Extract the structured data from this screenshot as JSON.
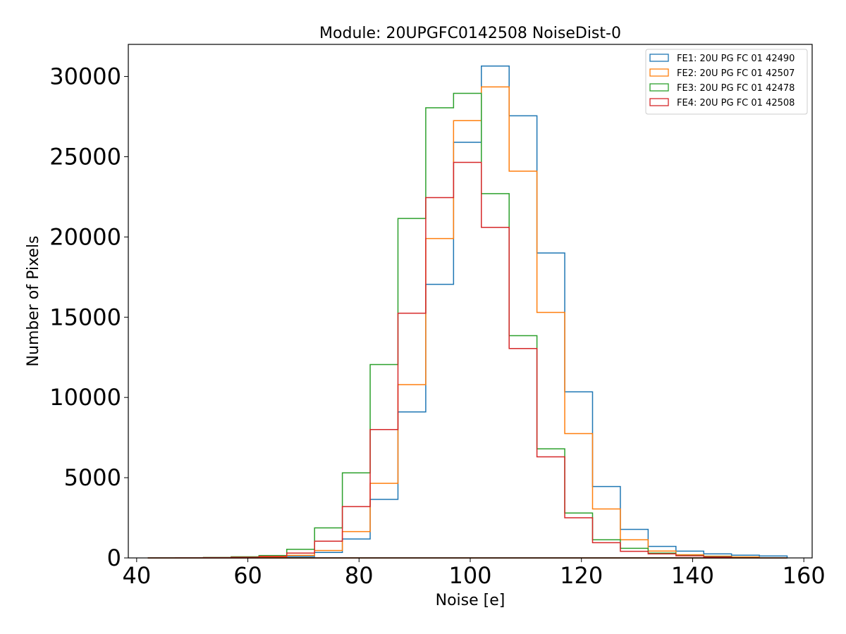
{
  "chart_data": {
    "type": "step-histogram",
    "title": "Module: 20UPGFC0142508 NoiseDist-0",
    "xlabel": "Noise [e]",
    "ylabel": "Number of Pixels",
    "xlim": [
      38.5,
      161.5
    ],
    "ylim": [
      0,
      32000
    ],
    "xticks": [
      40,
      60,
      80,
      100,
      120,
      140,
      160
    ],
    "yticks": [
      0,
      5000,
      10000,
      15000,
      20000,
      25000,
      30000
    ],
    "bin_edges": [
      42,
      47,
      52,
      57,
      62,
      67,
      72,
      77,
      82,
      87,
      92,
      97,
      102,
      107,
      112,
      117,
      122,
      127,
      132,
      137,
      142,
      147,
      152,
      157
    ],
    "legend_position": "top-right",
    "grid": false,
    "series": [
      {
        "name": "FE1: 20U PG FC 01 42490",
        "color": "#1f77b4",
        "values": [
          0,
          0,
          5,
          10,
          30,
          90,
          340,
          1180,
          3650,
          9100,
          17050,
          25900,
          30650,
          27550,
          19000,
          10350,
          4450,
          1780,
          720,
          420,
          250,
          170,
          120
        ]
      },
      {
        "name": "FE2: 20U PG FC 01 42507",
        "color": "#ff7f0e",
        "values": [
          0,
          5,
          10,
          20,
          50,
          160,
          460,
          1640,
          4650,
          10800,
          19900,
          27250,
          29350,
          24100,
          15300,
          7750,
          3050,
          1130,
          430,
          200,
          110,
          60,
          0
        ]
      },
      {
        "name": "FE3: 20U PG FC 01 42478",
        "color": "#2ca02c",
        "values": [
          0,
          10,
          30,
          70,
          150,
          540,
          1870,
          5300,
          12050,
          21150,
          28050,
          28950,
          22700,
          13850,
          6800,
          2800,
          1130,
          600,
          300,
          150,
          80,
          0,
          0
        ]
      },
      {
        "name": "FE4: 20U PG FC 01 42508",
        "color": "#d62728",
        "values": [
          0,
          5,
          15,
          40,
          100,
          300,
          1040,
          3200,
          8000,
          15250,
          22450,
          24650,
          20600,
          13050,
          6300,
          2500,
          950,
          410,
          250,
          130,
          60,
          0,
          0
        ]
      }
    ]
  }
}
